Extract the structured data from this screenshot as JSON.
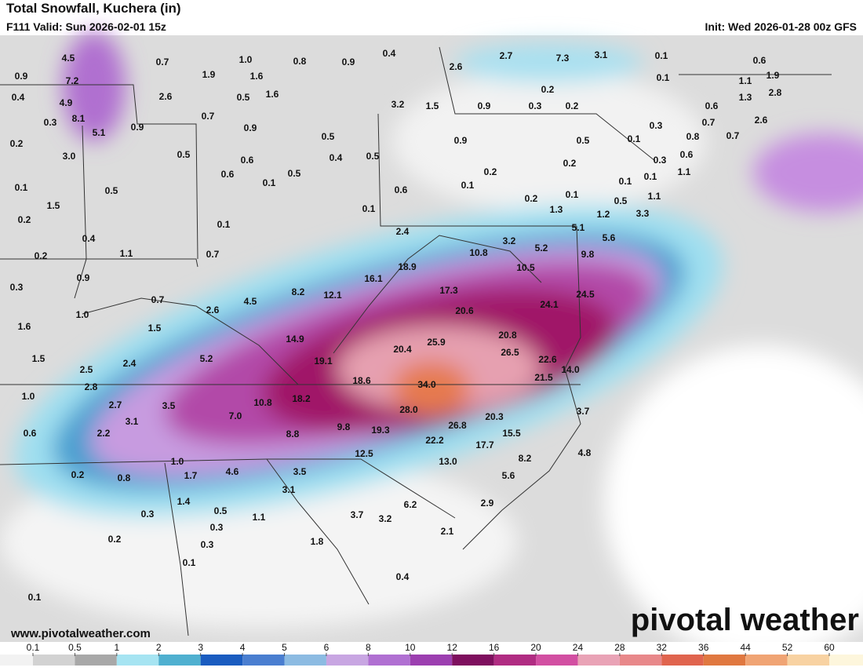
{
  "header": {
    "title": "Total Snowfall, Kuchera (in)",
    "valid": "F111 Valid: Sun 2026-02-01 15z",
    "init": "Init: Wed 2026-01-28 00z GFS"
  },
  "labels": [
    "4.5",
    "0.7",
    "1.0",
    "0.8",
    "0.9",
    "0.4",
    "2.7",
    "7.3",
    "3.1",
    "0.1",
    "0.6",
    "0.9",
    "7.2",
    "1.9",
    "1.6",
    "2.6",
    "0.1",
    "1.1",
    "1.9",
    "0.4",
    "4.9",
    "2.6",
    "0.5",
    "1.6",
    "0.2",
    "1.3",
    "2.8",
    "3.2",
    "1.5",
    "0.9",
    "0.3",
    "0.2",
    "0.6",
    "0.3",
    "8.1",
    "0.7",
    "0.7",
    "2.6",
    "5.1",
    "0.9",
    "0.9",
    "0.3",
    "0.2",
    "0.5",
    "0.9",
    "0.5",
    "0.1",
    "0.8",
    "0.7",
    "3.0",
    "0.5",
    "0.6",
    "0.4",
    "0.5",
    "0.6",
    "0.3",
    "0.6",
    "0.5",
    "0.2",
    "0.2",
    "1.1",
    "0.1",
    "0.1",
    "0.5",
    "0.1",
    "0.6",
    "0.1",
    "0.1",
    "1.5",
    "0.1",
    "0.2",
    "0.1",
    "1.1",
    "0.5",
    "0.2",
    "0.1",
    "1.3",
    "1.2",
    "3.3",
    "0.4",
    "2.4",
    "3.2",
    "5.1",
    "5.6",
    "5.2",
    "0.2",
    "1.1",
    "0.7",
    "10.8",
    "9.8",
    "18.9",
    "10.5",
    "0.9",
    "16.1",
    "0.3",
    "8.2",
    "17.3",
    "24.5",
    "0.7",
    "4.5",
    "12.1",
    "24.1",
    "1.0",
    "2.6",
    "20.6",
    "1.6",
    "1.5",
    "14.9",
    "20.8",
    "25.9",
    "20.4",
    "26.5",
    "1.5",
    "5.2",
    "19.1",
    "22.6",
    "2.5",
    "2.4",
    "14.0",
    "2.8",
    "18.6",
    "34.0",
    "21.5",
    "1.0",
    "18.2",
    "10.8",
    "2.7",
    "3.5",
    "28.0",
    "3.7",
    "7.0",
    "20.3",
    "3.1",
    "9.8",
    "19.3",
    "26.8",
    "0.6",
    "2.2",
    "8.8",
    "15.5",
    "22.2",
    "17.7",
    "12.5",
    "4.8",
    "8.2",
    "1.0",
    "13.0",
    "4.6",
    "3.5",
    "0.2",
    "0.8",
    "1.7",
    "5.6",
    "3.1",
    "1.4",
    "6.2",
    "2.9",
    "0.5",
    "0.3",
    "1.1",
    "3.7",
    "3.2",
    "0.3",
    "2.1",
    "0.2",
    "0.3",
    "1.8",
    "0.1",
    "0.4",
    "0.1"
  ],
  "footer": {
    "website": "www.pivotalweather.com",
    "logo": "pivotal weather"
  },
  "colorbar": {
    "ticks": [
      0.1,
      0.5,
      1,
      2,
      3,
      4,
      5,
      6,
      8,
      10,
      12,
      16,
      20,
      24,
      28,
      32,
      36,
      44,
      52,
      60
    ],
    "colors": [
      "#f2f2f2",
      "#d2d2d2",
      "#a8a8a8",
      "#a6e4f2",
      "#4fb0d0",
      "#1a5cc0",
      "#4a7ed0",
      "#8cbbe2",
      "#c8a6e2",
      "#b070d2",
      "#9c3fb0",
      "#7e0f5e",
      "#b02c82",
      "#d24fa2",
      "#e9a3b6",
      "#e8888a",
      "#e0644e",
      "#e07840",
      "#f0a474",
      "#f8d2a2",
      "#fdf6dc"
    ]
  }
}
